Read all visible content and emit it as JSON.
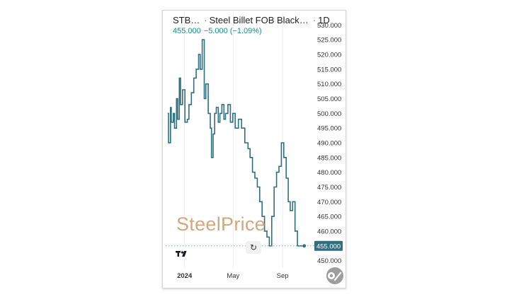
{
  "header": {
    "symbol": "STB…",
    "name": "Steel Billet FOB Black…",
    "interval": "1D",
    "price": "455.000",
    "change": "−5.000 (−1.09%)"
  },
  "watermark": "SteelPrice",
  "last_price_tag": "455.000",
  "colors": {
    "line": "#2f6f7e",
    "price_tag_bg": "#2f6f7e",
    "change": "#1f8c8c",
    "watermark": "#d1a77f"
  },
  "icons": [
    "tradingview-logo-icon",
    "reset-icon",
    "settings-icon"
  ],
  "chart_data": {
    "type": "line",
    "title": "",
    "xlabel": "",
    "ylabel": "",
    "ylim": [
      447.5,
      532.5
    ],
    "y_ticks": [
      530,
      525,
      520,
      515,
      510,
      505,
      500,
      495,
      490,
      485,
      480,
      475,
      470,
      465,
      460,
      455,
      450
    ],
    "y_tick_labels": [
      "530.000",
      "525.000",
      "520.000",
      "515.000",
      "510.000",
      "505.000",
      "500.000",
      "495.000",
      "490.000",
      "485.000",
      "480.000",
      "475.000",
      "470.000",
      "465.000",
      "460.000",
      "455.000",
      "450.000"
    ],
    "x_tick_labels": [
      {
        "label": "2024",
        "date": "2024-01-01",
        "bold": true
      },
      {
        "label": "May",
        "date": "2024-05-01",
        "bold": false
      },
      {
        "label": "Sep",
        "date": "2024-09-01",
        "bold": false
      }
    ],
    "grid": true,
    "legend": "none",
    "series": [
      {
        "x": [
          "2023-11-20",
          "2023-11-22",
          "2023-11-27",
          "2023-11-29",
          "2023-12-04",
          "2023-12-07",
          "2023-12-12",
          "2023-12-15",
          "2023-12-19",
          "2023-12-22",
          "2023-12-27",
          "2024-01-02",
          "2024-01-08",
          "2024-01-12",
          "2024-01-18",
          "2024-01-24",
          "2024-01-30",
          "2024-02-05",
          "2024-02-09",
          "2024-02-14",
          "2024-02-19",
          "2024-02-23",
          "2024-02-29",
          "2024-03-05",
          "2024-03-08",
          "2024-03-12",
          "2024-03-16",
          "2024-03-20",
          "2024-03-25",
          "2024-03-29",
          "2024-04-03",
          "2024-04-08",
          "2024-04-12",
          "2024-04-18",
          "2024-04-24",
          "2024-04-30",
          "2024-05-06",
          "2024-05-14",
          "2024-05-22",
          "2024-05-30",
          "2024-06-07",
          "2024-06-12",
          "2024-06-18",
          "2024-06-24",
          "2024-06-30",
          "2024-07-06",
          "2024-07-12",
          "2024-07-18",
          "2024-07-24",
          "2024-07-30",
          "2024-08-05",
          "2024-08-11",
          "2024-08-17",
          "2024-08-23",
          "2024-08-29",
          "2024-09-04",
          "2024-09-10",
          "2024-09-15",
          "2024-09-20",
          "2024-09-26",
          "2024-10-02",
          "2024-10-08",
          "2024-10-14",
          "2024-10-18",
          "2024-10-21",
          "2024-10-25"
        ],
        "y": [
          500,
          490,
          502,
          497,
          500,
          495,
          505,
          498,
          512,
          503,
          508,
          497,
          498,
          503,
          507,
          512,
          515,
          520,
          515,
          525,
          505,
          510,
          500,
          495,
          485,
          493,
          500,
          502,
          497,
          500,
          503,
          498,
          500,
          503,
          497,
          500,
          495,
          498,
          495,
          490,
          488,
          485,
          480,
          478,
          475,
          470,
          465,
          460,
          458,
          455,
          465,
          475,
          480,
          482,
          490,
          485,
          478,
          470,
          467,
          470,
          460,
          455,
          455,
          455,
          455,
          455
        ]
      }
    ]
  }
}
